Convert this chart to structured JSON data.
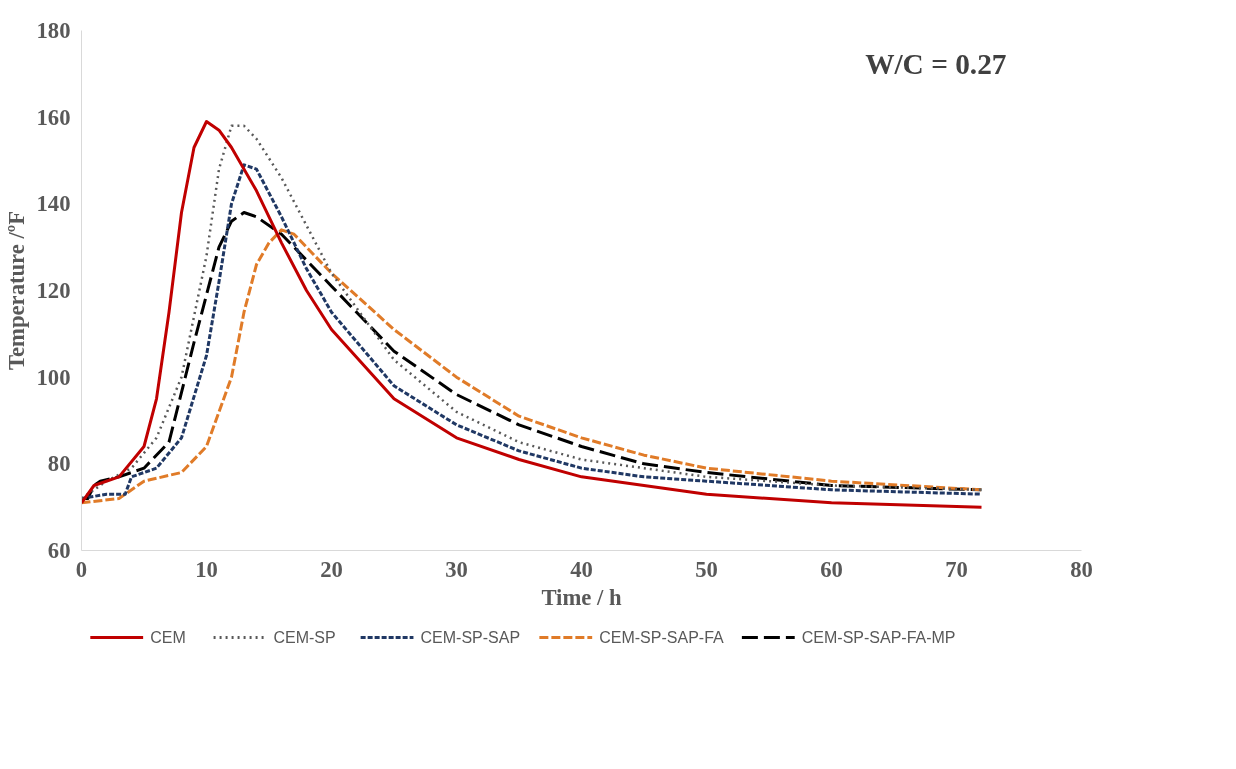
{
  "chart_data": {
    "type": "line",
    "xlabel": "Time / h",
    "ylabel": "Temperature /ºF",
    "annotations": [
      "W/C = 0.27"
    ],
    "xlim": [
      0,
      80
    ],
    "xticks": [
      0,
      10,
      20,
      30,
      40,
      50,
      60,
      70,
      80
    ],
    "ylim": [
      60,
      180
    ],
    "yticks": [
      60,
      80,
      100,
      120,
      140,
      160,
      180
    ],
    "grid": false,
    "legend": "bottom",
    "marker": "none",
    "series": [
      {
        "name": "CEM",
        "color": "#c00000",
        "line_style": "solid",
        "x": [
          0,
          1,
          3,
          5,
          6,
          7,
          8,
          9,
          10,
          11,
          12,
          14,
          16,
          18,
          20,
          25,
          30,
          35,
          40,
          45,
          50,
          60,
          72
        ],
        "values": [
          71,
          75,
          77,
          84,
          95,
          115,
          138,
          153,
          159,
          157,
          153,
          143,
          131,
          120,
          111,
          95,
          86,
          81,
          77,
          75,
          73,
          71,
          70
        ]
      },
      {
        "name": "CEM-SP",
        "color": "#595959",
        "line_style": "dotted",
        "x": [
          0,
          2,
          4,
          6,
          8,
          10,
          11,
          12,
          13,
          14,
          16,
          18,
          20,
          25,
          30,
          35,
          40,
          45,
          50,
          60,
          72
        ],
        "values": [
          72,
          76,
          79,
          86,
          100,
          128,
          148,
          158,
          158,
          155,
          146,
          135,
          124,
          104,
          92,
          85,
          81,
          79,
          77,
          75,
          74
        ]
      },
      {
        "name": "CEM-SP-SAP",
        "color": "#203864",
        "line_style": "dashed",
        "x": [
          0,
          2,
          3.5,
          4,
          6,
          8,
          10,
          11,
          12,
          13,
          14,
          16,
          18,
          20,
          25,
          30,
          35,
          40,
          45,
          50,
          60,
          72
        ],
        "values": [
          72,
          73,
          73,
          77,
          79,
          86,
          105,
          122,
          140,
          149,
          148,
          137,
          125,
          115,
          98,
          89,
          83,
          79,
          77,
          76,
          74,
          73
        ]
      },
      {
        "name": "CEM-SP-SAP-FA",
        "color": "#e07b28",
        "line_style": "dashed",
        "x": [
          0,
          3,
          5,
          8,
          10,
          12,
          13,
          14,
          15,
          16,
          17,
          18,
          20,
          25,
          30,
          35,
          40,
          45,
          50,
          60,
          72
        ],
        "values": [
          71,
          72,
          76,
          78,
          84,
          100,
          115,
          126,
          131,
          134,
          133,
          130,
          124,
          111,
          100,
          91,
          86,
          82,
          79,
          76,
          74
        ]
      },
      {
        "name": "CEM-SP-SAP-FA-MP",
        "color": "#000000",
        "line_style": "dashed",
        "x": [
          0,
          0.5,
          1,
          1.5,
          3,
          5,
          7,
          9,
          11,
          12,
          13,
          14,
          16,
          18,
          20,
          25,
          30,
          35,
          40,
          45,
          50,
          60,
          72
        ],
        "values": [
          72,
          72,
          75,
          76,
          77,
          79,
          85,
          108,
          130,
          136,
          138,
          137,
          133,
          127,
          121,
          106,
          96,
          89,
          84,
          80,
          78,
          75,
          74
        ]
      }
    ]
  }
}
